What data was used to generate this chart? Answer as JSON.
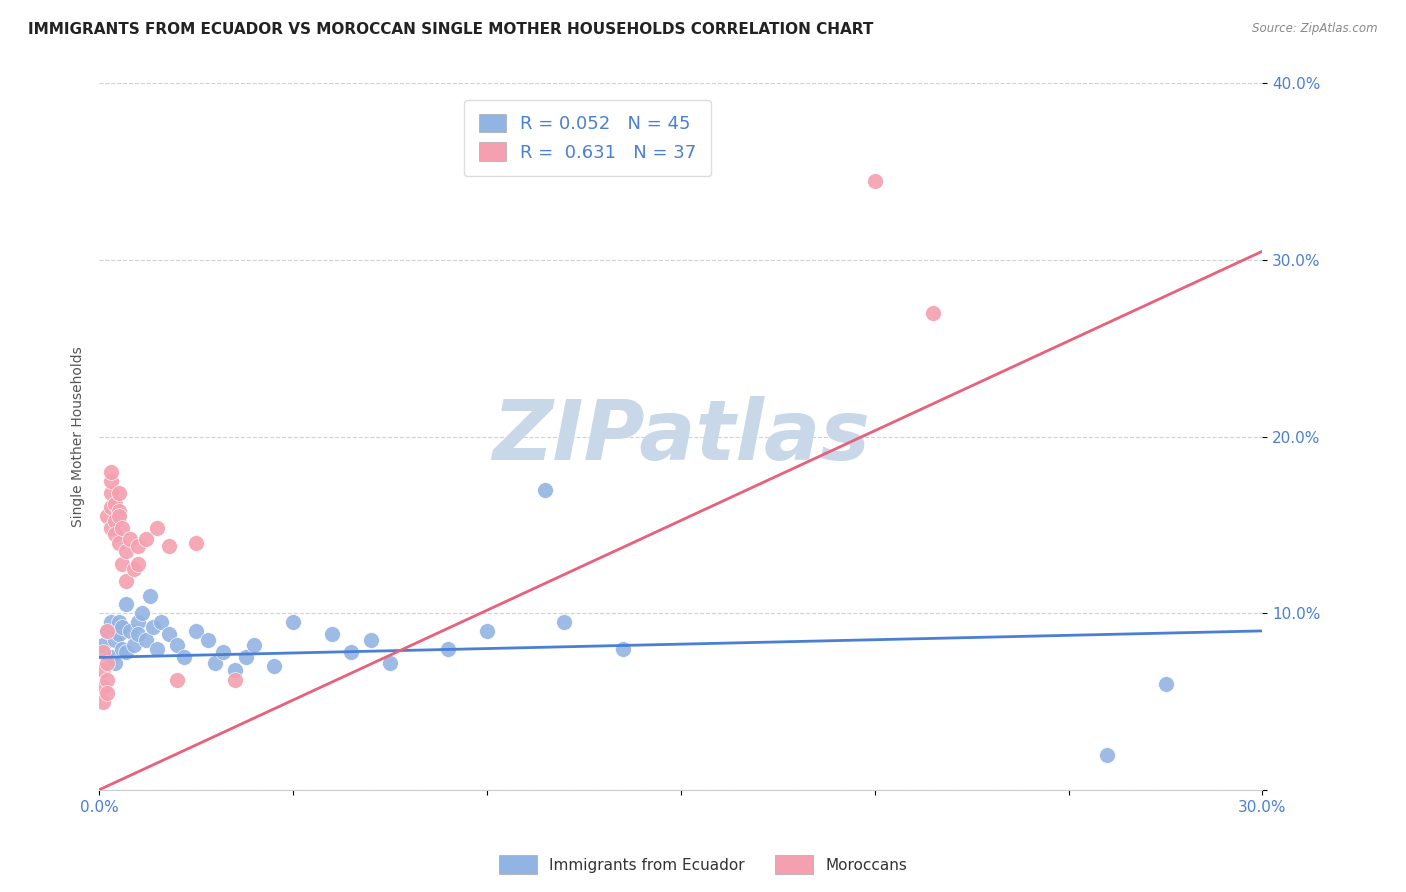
{
  "title": "IMMIGRANTS FROM ECUADOR VS MOROCCAN SINGLE MOTHER HOUSEHOLDS CORRELATION CHART",
  "source": "Source: ZipAtlas.com",
  "ylabel": "Single Mother Households",
  "xlim": [
    0.0,
    0.3
  ],
  "ylim": [
    0.0,
    0.4
  ],
  "xticks": [
    0.0,
    0.05,
    0.1,
    0.15,
    0.2,
    0.25,
    0.3
  ],
  "yticks": [
    0.0,
    0.1,
    0.2,
    0.3,
    0.4
  ],
  "xtick_labels": [
    "0.0%",
    "",
    "",
    "",
    "",
    "",
    "30.0%"
  ],
  "ytick_labels": [
    "",
    "10.0%",
    "20.0%",
    "30.0%",
    "40.0%"
  ],
  "legend_blue_r": "R = 0.052",
  "legend_blue_n": "N = 45",
  "legend_pink_r": "R =  0.631",
  "legend_pink_n": "N = 37",
  "blue_color": "#92b4e3",
  "pink_color": "#f4a0b0",
  "blue_line_color": "#4a7fd4",
  "pink_line_color": "#e8607a",
  "watermark": "ZIPatlas",
  "watermark_color": "#c8d8e8",
  "title_fontsize": 11,
  "axis_label_fontsize": 10,
  "tick_fontsize": 11,
  "legend_fontsize": 13,
  "blue_line_x": [
    0.0,
    0.3
  ],
  "blue_line_y": [
    0.075,
    0.09
  ],
  "pink_line_x": [
    0.0,
    0.3
  ],
  "pink_line_y": [
    0.0,
    0.305
  ],
  "blue_scatter": [
    [
      0.001,
      0.082
    ],
    [
      0.002,
      0.09
    ],
    [
      0.003,
      0.095
    ],
    [
      0.003,
      0.075
    ],
    [
      0.004,
      0.085
    ],
    [
      0.004,
      0.072
    ],
    [
      0.005,
      0.088
    ],
    [
      0.005,
      0.095
    ],
    [
      0.006,
      0.08
    ],
    [
      0.006,
      0.092
    ],
    [
      0.007,
      0.105
    ],
    [
      0.007,
      0.078
    ],
    [
      0.008,
      0.09
    ],
    [
      0.009,
      0.082
    ],
    [
      0.01,
      0.095
    ],
    [
      0.01,
      0.088
    ],
    [
      0.011,
      0.1
    ],
    [
      0.012,
      0.085
    ],
    [
      0.013,
      0.11
    ],
    [
      0.014,
      0.092
    ],
    [
      0.015,
      0.08
    ],
    [
      0.016,
      0.095
    ],
    [
      0.018,
      0.088
    ],
    [
      0.02,
      0.082
    ],
    [
      0.022,
      0.075
    ],
    [
      0.025,
      0.09
    ],
    [
      0.028,
      0.085
    ],
    [
      0.03,
      0.072
    ],
    [
      0.032,
      0.078
    ],
    [
      0.035,
      0.068
    ],
    [
      0.038,
      0.075
    ],
    [
      0.04,
      0.082
    ],
    [
      0.045,
      0.07
    ],
    [
      0.05,
      0.095
    ],
    [
      0.06,
      0.088
    ],
    [
      0.065,
      0.078
    ],
    [
      0.07,
      0.085
    ],
    [
      0.075,
      0.072
    ],
    [
      0.09,
      0.08
    ],
    [
      0.1,
      0.09
    ],
    [
      0.115,
      0.17
    ],
    [
      0.12,
      0.095
    ],
    [
      0.135,
      0.08
    ],
    [
      0.26,
      0.02
    ],
    [
      0.275,
      0.06
    ]
  ],
  "pink_scatter": [
    [
      0.001,
      0.068
    ],
    [
      0.001,
      0.058
    ],
    [
      0.001,
      0.05
    ],
    [
      0.001,
      0.078
    ],
    [
      0.002,
      0.09
    ],
    [
      0.002,
      0.062
    ],
    [
      0.002,
      0.072
    ],
    [
      0.002,
      0.055
    ],
    [
      0.002,
      0.155
    ],
    [
      0.003,
      0.168
    ],
    [
      0.003,
      0.16
    ],
    [
      0.003,
      0.175
    ],
    [
      0.003,
      0.18
    ],
    [
      0.003,
      0.148
    ],
    [
      0.004,
      0.162
    ],
    [
      0.004,
      0.152
    ],
    [
      0.004,
      0.145
    ],
    [
      0.005,
      0.158
    ],
    [
      0.005,
      0.14
    ],
    [
      0.005,
      0.155
    ],
    [
      0.005,
      0.168
    ],
    [
      0.006,
      0.148
    ],
    [
      0.006,
      0.128
    ],
    [
      0.007,
      0.135
    ],
    [
      0.007,
      0.118
    ],
    [
      0.008,
      0.142
    ],
    [
      0.009,
      0.125
    ],
    [
      0.01,
      0.138
    ],
    [
      0.01,
      0.128
    ],
    [
      0.012,
      0.142
    ],
    [
      0.015,
      0.148
    ],
    [
      0.018,
      0.138
    ],
    [
      0.02,
      0.062
    ],
    [
      0.025,
      0.14
    ],
    [
      0.035,
      0.062
    ],
    [
      0.2,
      0.345
    ],
    [
      0.215,
      0.27
    ]
  ]
}
